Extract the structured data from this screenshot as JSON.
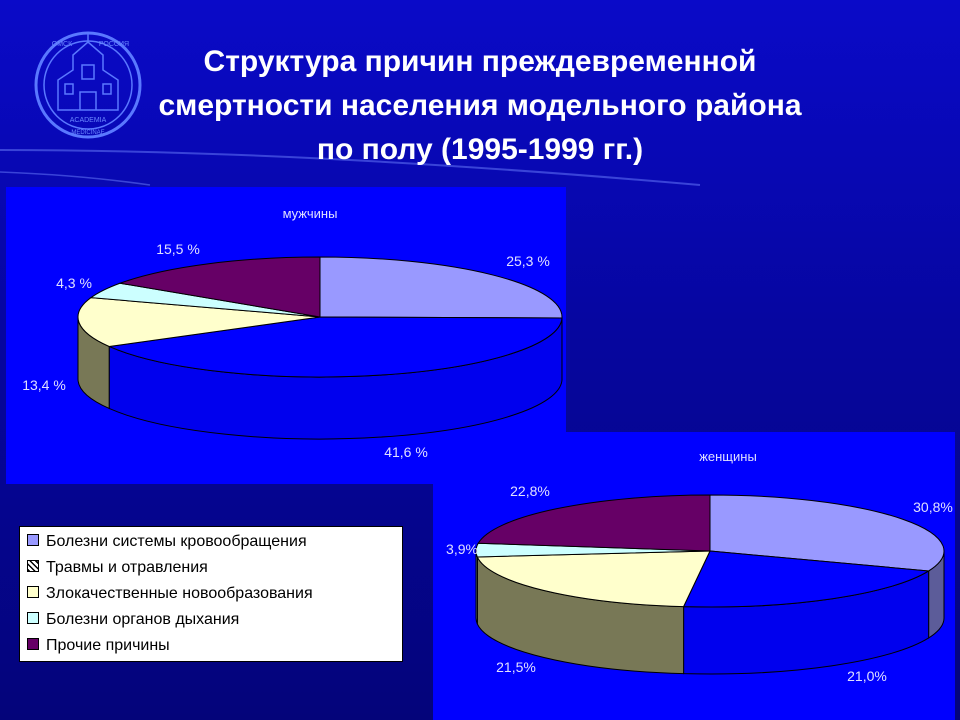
{
  "title_lines": [
    "Структура причин преждевременной",
    "смертности населения модельного района",
    "по полу (1995-1999 гг.)"
  ],
  "logo": {
    "text": [
      "ОМСК",
      "РОССИЯ",
      "ACADEMIA",
      "MEDICINAE"
    ],
    "icon": "omsk-medical-academy-emblem"
  },
  "legend": {
    "items": [
      {
        "label": "Болезни системы кровообращения",
        "color": "#9999ff",
        "pattern": "solid"
      },
      {
        "label": "Травмы и отравления",
        "color": "#ffffff",
        "pattern": "hatched"
      },
      {
        "label": "Злокачественные новообразования",
        "color": "#ffffcc",
        "pattern": "solid"
      },
      {
        "label": "Болезни органов дыхания",
        "color": "#ccffff",
        "pattern": "solid"
      },
      {
        "label": "Прочие причины",
        "color": "#660066",
        "pattern": "solid"
      }
    ]
  },
  "colors": {
    "background": "#0a0ac8",
    "panel": "#0000ff",
    "chart_text": "#e0e0ff"
  },
  "chart_data": [
    {
      "type": "pie",
      "style": "3d",
      "title": "мужчины",
      "categories": [
        "Болезни системы кровообращения",
        "Травмы и отравления",
        "Злокачественные новообразования",
        "Болезни органов дыхания",
        "Прочие причины"
      ],
      "values": [
        25.3,
        41.6,
        13.4,
        4.3,
        15.5
      ],
      "labels": [
        "25,3 %",
        "41,6 %",
        "13,4 %",
        "4,3 %",
        "15,5 %"
      ],
      "colors": [
        "#9999ff",
        "#0000ff",
        "#ffffcc",
        "#ccffff",
        "#660066"
      ]
    },
    {
      "type": "pie",
      "style": "3d",
      "title": "женщины",
      "categories": [
        "Болезни системы кровообращения",
        "Травмы и отравления",
        "Злокачественные новообразования",
        "Болезни органов дыхания",
        "Прочие причины"
      ],
      "values": [
        30.8,
        21.0,
        21.5,
        3.9,
        22.8
      ],
      "labels": [
        "30,8%",
        "21,0%",
        "21,5%",
        "3,9%",
        "22,8%"
      ],
      "colors": [
        "#9999ff",
        "#0000ff",
        "#ffffcc",
        "#ccffff",
        "#660066"
      ]
    }
  ]
}
